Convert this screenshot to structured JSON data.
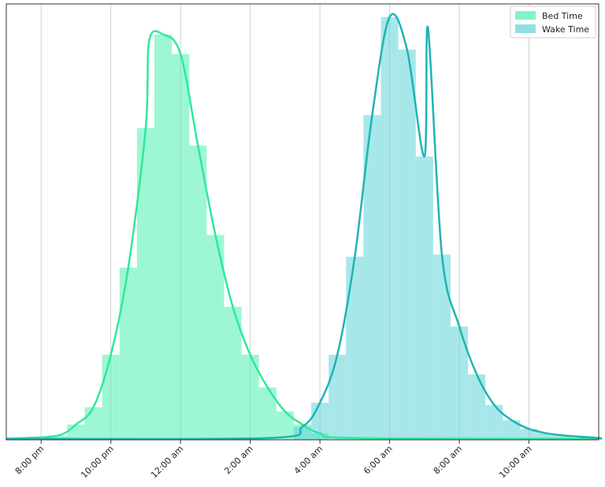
{
  "chart_data": {
    "type": "histogram-with-density",
    "title": "",
    "xlabel": "",
    "ylabel": "",
    "x_unit": "hours relative to midnight (negative = previous evening)",
    "xlim": [
      -5,
      12
    ],
    "tick_values": [
      -4,
      -2,
      0,
      2,
      4,
      6,
      8,
      10
    ],
    "tick_labels": [
      "8:00 pm",
      "10:00 pm",
      "12:00 am",
      "2:00 am",
      "4:00 am",
      "6:00 am",
      "8:00 am",
      "10:00 am"
    ],
    "y_tick_labels_shown": false,
    "grid": "vertical",
    "legend_position": "top-right",
    "bin_width": 0.5,
    "series": [
      {
        "name": "Bed Time",
        "color": "#4ef0b0",
        "line_color": "#2fe89a",
        "bins": [
          {
            "x": -3.5,
            "y": 0.02
          },
          {
            "x": -3.0,
            "y": 0.07
          },
          {
            "x": -2.5,
            "y": 0.15
          },
          {
            "x": -2.0,
            "y": 0.39
          },
          {
            "x": -1.5,
            "y": 0.79
          },
          {
            "x": -1.0,
            "y": 1.43
          },
          {
            "x": -0.5,
            "y": 1.86
          },
          {
            "x": 0.0,
            "y": 1.77
          },
          {
            "x": 0.5,
            "y": 1.35
          },
          {
            "x": 1.0,
            "y": 0.94
          },
          {
            "x": 1.5,
            "y": 0.61
          },
          {
            "x": 2.0,
            "y": 0.39
          },
          {
            "x": 2.5,
            "y": 0.24
          },
          {
            "x": 3.0,
            "y": 0.13
          },
          {
            "x": 3.5,
            "y": 0.07
          },
          {
            "x": 4.0,
            "y": 0.03
          }
        ],
        "density_peak": {
          "x": -0.9,
          "y": 1.83
        }
      },
      {
        "name": "Wake Time",
        "color": "#5fd3d8",
        "line_color": "#1fb3b3",
        "bins": [
          {
            "x": 3.5,
            "y": 0.06
          },
          {
            "x": 4.0,
            "y": 0.17
          },
          {
            "x": 4.5,
            "y": 0.39
          },
          {
            "x": 5.0,
            "y": 0.84
          },
          {
            "x": 5.5,
            "y": 1.49
          },
          {
            "x": 6.0,
            "y": 1.94
          },
          {
            "x": 6.5,
            "y": 1.79
          },
          {
            "x": 7.0,
            "y": 1.3
          },
          {
            "x": 7.5,
            "y": 0.85
          },
          {
            "x": 8.0,
            "y": 0.52
          },
          {
            "x": 8.5,
            "y": 0.3
          },
          {
            "x": 9.0,
            "y": 0.16
          },
          {
            "x": 9.5,
            "y": 0.09
          },
          {
            "x": 10.0,
            "y": 0.05
          },
          {
            "x": 10.5,
            "y": 0.03
          },
          {
            "x": 11.0,
            "y": 0.02
          }
        ],
        "density_peak": {
          "x": 7.1,
          "y": 1.89
        }
      }
    ],
    "ylim": [
      0,
      2.0
    ]
  }
}
